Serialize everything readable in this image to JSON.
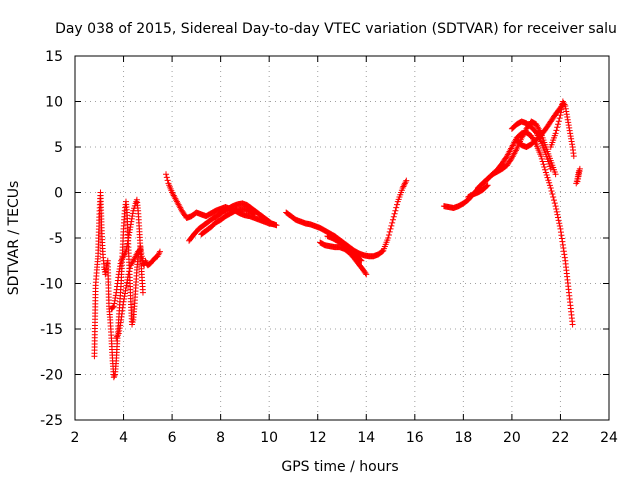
{
  "chart_data": {
    "type": "scatter",
    "title": "Day 038 of 2015, Sidereal Day-to-day VTEC variation (SDTVAR) for receiver salu",
    "xlabel": "GPS time / hours",
    "ylabel": "SDTVAR / TECUs",
    "xlim": [
      2,
      24
    ],
    "ylim": [
      -25,
      15
    ],
    "xticks": [
      2,
      4,
      6,
      8,
      10,
      12,
      14,
      16,
      18,
      20,
      22,
      24
    ],
    "yticks": [
      -25,
      -20,
      -15,
      -10,
      -5,
      0,
      5,
      10,
      15
    ],
    "grid": true,
    "marker": "plus",
    "series_color": "#ff0000",
    "series": [
      {
        "name": "SDTVAR",
        "segments": [
          [
            [
              2.8,
              -18.0
            ],
            [
              2.85,
              -10.2
            ],
            [
              2.9,
              -8.5
            ],
            [
              2.95,
              -7.0
            ],
            [
              3.0,
              -2.7
            ],
            [
              3.05,
              0.0
            ],
            [
              3.1,
              -4.2
            ],
            [
              3.15,
              -6.8
            ],
            [
              3.2,
              -8.2
            ],
            [
              3.25,
              -9.0
            ],
            [
              3.3,
              -8.0
            ],
            [
              3.35,
              -7.5
            ],
            [
              3.4,
              -12.5
            ],
            [
              3.45,
              -14.0
            ],
            [
              3.5,
              -16.0
            ],
            [
              3.55,
              -18.5
            ],
            [
              3.6,
              -20.3
            ],
            [
              3.65,
              -20.0
            ],
            [
              3.7,
              -18.5
            ],
            [
              3.75,
              -16.0
            ],
            [
              3.8,
              -14.0
            ],
            [
              3.85,
              -12.0
            ],
            [
              3.9,
              -10.0
            ],
            [
              3.95,
              -7.0
            ],
            [
              4.0,
              -4.0
            ],
            [
              4.05,
              -2.0
            ],
            [
              4.1,
              -1.0
            ],
            [
              4.15,
              -2.5
            ],
            [
              4.2,
              -6.0
            ],
            [
              4.25,
              -9.0
            ],
            [
              4.3,
              -12.0
            ],
            [
              4.35,
              -14.5
            ],
            [
              4.4,
              -14.0
            ],
            [
              4.45,
              -12.5
            ],
            [
              4.5,
              -10.5
            ],
            [
              4.55,
              -8.5
            ],
            [
              4.6,
              -7.0
            ],
            [
              4.65,
              -6.5
            ],
            [
              4.7,
              -6.0
            ],
            [
              4.75,
              -7.0
            ],
            [
              4.8,
              -7.8
            ],
            [
              4.85,
              -8.0
            ],
            [
              4.9,
              -7.5
            ],
            [
              4.95,
              -7.8
            ],
            [
              5.0,
              -8.0
            ],
            [
              5.1,
              -7.8
            ],
            [
              5.2,
              -7.5
            ],
            [
              5.3,
              -7.2
            ],
            [
              5.4,
              -7.0
            ],
            [
              5.5,
              -6.5
            ]
          ],
          [
            [
              3.5,
              -12.8
            ],
            [
              3.6,
              -12.5
            ],
            [
              3.7,
              -11.0
            ],
            [
              3.8,
              -9.0
            ],
            [
              3.9,
              -7.5
            ],
            [
              4.0,
              -7.0
            ],
            [
              4.1,
              -6.5
            ],
            [
              4.2,
              -5.0
            ],
            [
              4.3,
              -3.5
            ],
            [
              4.4,
              -2.0
            ],
            [
              4.5,
              -1.2
            ],
            [
              4.55,
              -0.8
            ],
            [
              4.6,
              -2.0
            ],
            [
              4.65,
              -4.0
            ],
            [
              4.7,
              -6.5
            ],
            [
              4.75,
              -9.0
            ],
            [
              4.8,
              -11.0
            ]
          ],
          [
            [
              3.7,
              -16.0
            ],
            [
              3.8,
              -15.5
            ],
            [
              3.9,
              -14.0
            ],
            [
              4.0,
              -12.0
            ],
            [
              4.1,
              -10.5
            ],
            [
              4.2,
              -9.0
            ],
            [
              4.3,
              -8.0
            ],
            [
              4.4,
              -7.5
            ],
            [
              4.5,
              -7.0
            ],
            [
              4.6,
              -6.5
            ],
            [
              4.7,
              -6.3
            ]
          ],
          [
            [
              5.75,
              2.0
            ],
            [
              5.85,
              1.0
            ],
            [
              6.0,
              0.0
            ],
            [
              6.2,
              -1.0
            ],
            [
              6.4,
              -2.0
            ],
            [
              6.6,
              -2.8
            ],
            [
              6.8,
              -2.6
            ],
            [
              7.0,
              -2.2
            ],
            [
              7.2,
              -2.4
            ],
            [
              7.4,
              -2.6
            ],
            [
              7.6,
              -2.3
            ],
            [
              7.8,
              -2.0
            ],
            [
              8.0,
              -1.8
            ],
            [
              8.2,
              -1.6
            ],
            [
              8.4,
              -1.8
            ],
            [
              8.6,
              -2.0
            ],
            [
              8.8,
              -2.3
            ],
            [
              9.0,
              -2.5
            ],
            [
              9.2,
              -2.6
            ],
            [
              9.4,
              -2.8
            ],
            [
              9.6,
              -3.0
            ],
            [
              9.8,
              -3.2
            ],
            [
              10.0,
              -3.4
            ],
            [
              10.2,
              -3.5
            ]
          ],
          [
            [
              6.7,
              -5.3
            ],
            [
              6.9,
              -4.6
            ],
            [
              7.1,
              -4.0
            ],
            [
              7.3,
              -3.6
            ],
            [
              7.5,
              -3.2
            ],
            [
              7.7,
              -2.8
            ],
            [
              7.9,
              -2.5
            ],
            [
              8.1,
              -2.1
            ],
            [
              8.3,
              -1.8
            ],
            [
              8.5,
              -1.5
            ],
            [
              8.7,
              -1.3
            ],
            [
              8.9,
              -1.2
            ],
            [
              9.1,
              -1.4
            ],
            [
              9.3,
              -1.8
            ],
            [
              9.5,
              -2.2
            ],
            [
              9.7,
              -2.6
            ],
            [
              9.9,
              -3.0
            ],
            [
              10.1,
              -3.4
            ],
            [
              10.3,
              -3.6
            ]
          ],
          [
            [
              7.2,
              -4.6
            ],
            [
              7.4,
              -4.2
            ],
            [
              7.6,
              -3.8
            ],
            [
              7.8,
              -3.3
            ],
            [
              8.0,
              -3.0
            ],
            [
              8.2,
              -2.6
            ],
            [
              8.4,
              -2.3
            ],
            [
              8.6,
              -2.0
            ],
            [
              8.8,
              -1.9
            ],
            [
              9.0,
              -1.8
            ],
            [
              9.2,
              -2.0
            ],
            [
              9.4,
              -2.4
            ]
          ],
          [
            [
              10.7,
              -2.2
            ],
            [
              10.9,
              -2.6
            ],
            [
              11.1,
              -3.0
            ],
            [
              11.3,
              -3.2
            ],
            [
              11.5,
              -3.4
            ],
            [
              11.7,
              -3.5
            ],
            [
              11.9,
              -3.7
            ],
            [
              12.1,
              -3.9
            ],
            [
              12.3,
              -4.2
            ],
            [
              12.5,
              -4.5
            ],
            [
              12.7,
              -4.8
            ],
            [
              12.9,
              -5.2
            ],
            [
              13.1,
              -5.6
            ],
            [
              13.3,
              -6.0
            ],
            [
              13.5,
              -6.4
            ],
            [
              13.7,
              -6.7
            ],
            [
              13.9,
              -6.9
            ],
            [
              14.1,
              -7.0
            ],
            [
              14.3,
              -7.0
            ],
            [
              14.5,
              -6.8
            ],
            [
              14.7,
              -6.4
            ],
            [
              14.9,
              -5.0
            ],
            [
              15.1,
              -3.0
            ],
            [
              15.3,
              -1.0
            ],
            [
              15.5,
              0.5
            ],
            [
              15.65,
              1.3
            ]
          ],
          [
            [
              12.1,
              -5.5
            ],
            [
              12.3,
              -5.8
            ],
            [
              12.5,
              -5.9
            ],
            [
              12.7,
              -6.0
            ],
            [
              12.9,
              -6.0
            ],
            [
              13.1,
              -6.2
            ],
            [
              13.3,
              -6.6
            ],
            [
              13.5,
              -7.2
            ],
            [
              13.7,
              -7.9
            ],
            [
              13.9,
              -8.6
            ],
            [
              14.0,
              -9.0
            ]
          ],
          [
            [
              12.4,
              -4.8
            ],
            [
              12.6,
              -5.0
            ],
            [
              12.8,
              -5.3
            ],
            [
              13.0,
              -5.6
            ],
            [
              13.2,
              -6.0
            ],
            [
              13.4,
              -6.5
            ],
            [
              13.6,
              -7.0
            ],
            [
              13.8,
              -7.5
            ]
          ],
          [
            [
              17.2,
              -1.5
            ],
            [
              17.4,
              -1.6
            ],
            [
              17.6,
              -1.7
            ],
            [
              17.8,
              -1.5
            ],
            [
              18.0,
              -1.2
            ],
            [
              18.2,
              -0.8
            ],
            [
              18.4,
              -0.2
            ],
            [
              18.6,
              0.4
            ],
            [
              18.8,
              1.0
            ],
            [
              19.0,
              1.5
            ],
            [
              19.2,
              2.0
            ],
            [
              19.4,
              2.5
            ],
            [
              19.6,
              3.2
            ],
            [
              19.8,
              4.0
            ],
            [
              20.0,
              5.0
            ],
            [
              20.2,
              6.0
            ],
            [
              20.4,
              6.5
            ],
            [
              20.6,
              6.6
            ],
            [
              20.8,
              6.2
            ],
            [
              21.0,
              5.3
            ],
            [
              21.2,
              4.0
            ],
            [
              21.4,
              2.2
            ],
            [
              21.6,
              0.5
            ],
            [
              21.8,
              -1.5
            ],
            [
              22.0,
              -4.0
            ],
            [
              22.2,
              -7.5
            ],
            [
              22.35,
              -11.0
            ],
            [
              22.5,
              -14.5
            ]
          ],
          [
            [
              18.2,
              -0.5
            ],
            [
              18.4,
              -0.2
            ],
            [
              18.6,
              0.0
            ],
            [
              18.8,
              0.3
            ],
            [
              19.0,
              0.8
            ]
          ],
          [
            [
              18.6,
              0.5
            ],
            [
              18.8,
              1.0
            ],
            [
              19.0,
              1.5
            ],
            [
              19.2,
              2.0
            ],
            [
              19.4,
              2.3
            ],
            [
              19.6,
              2.6
            ],
            [
              19.8,
              3.0
            ],
            [
              20.0,
              3.8
            ],
            [
              20.2,
              4.8
            ],
            [
              20.4,
              6.0
            ],
            [
              20.6,
              7.0
            ],
            [
              20.8,
              7.8
            ],
            [
              21.0,
              7.5
            ],
            [
              21.2,
              6.5
            ],
            [
              21.4,
              5.0
            ],
            [
              21.6,
              3.5
            ],
            [
              21.8,
              2.0
            ]
          ],
          [
            [
              20.0,
              7.0
            ],
            [
              20.2,
              7.5
            ],
            [
              20.4,
              7.8
            ],
            [
              20.6,
              7.6
            ],
            [
              20.8,
              7.2
            ],
            [
              21.0,
              6.6
            ],
            [
              21.2,
              5.6
            ],
            [
              21.4,
              4.2
            ],
            [
              21.6,
              2.6
            ]
          ],
          [
            [
              21.6,
              5.0
            ],
            [
              21.8,
              6.5
            ],
            [
              22.0,
              8.5
            ],
            [
              22.1,
              10.0
            ],
            [
              22.2,
              9.5
            ],
            [
              22.3,
              8.0
            ],
            [
              22.4,
              6.5
            ],
            [
              22.5,
              5.0
            ],
            [
              22.55,
              4.0
            ]
          ],
          [
            [
              20.2,
              5.8
            ],
            [
              20.4,
              5.2
            ],
            [
              20.6,
              5.0
            ],
            [
              20.8,
              5.3
            ],
            [
              21.0,
              5.8
            ],
            [
              21.2,
              6.3
            ],
            [
              21.4,
              7.0
            ],
            [
              21.6,
              7.8
            ],
            [
              21.8,
              8.6
            ],
            [
              22.0,
              9.3
            ],
            [
              22.1,
              9.8
            ]
          ],
          [
            [
              22.65,
              1.0
            ],
            [
              22.7,
              1.5
            ],
            [
              22.75,
              2.2
            ],
            [
              22.8,
              2.6
            ],
            [
              22.75,
              1.8
            ],
            [
              22.7,
              1.2
            ]
          ]
        ]
      }
    ]
  }
}
